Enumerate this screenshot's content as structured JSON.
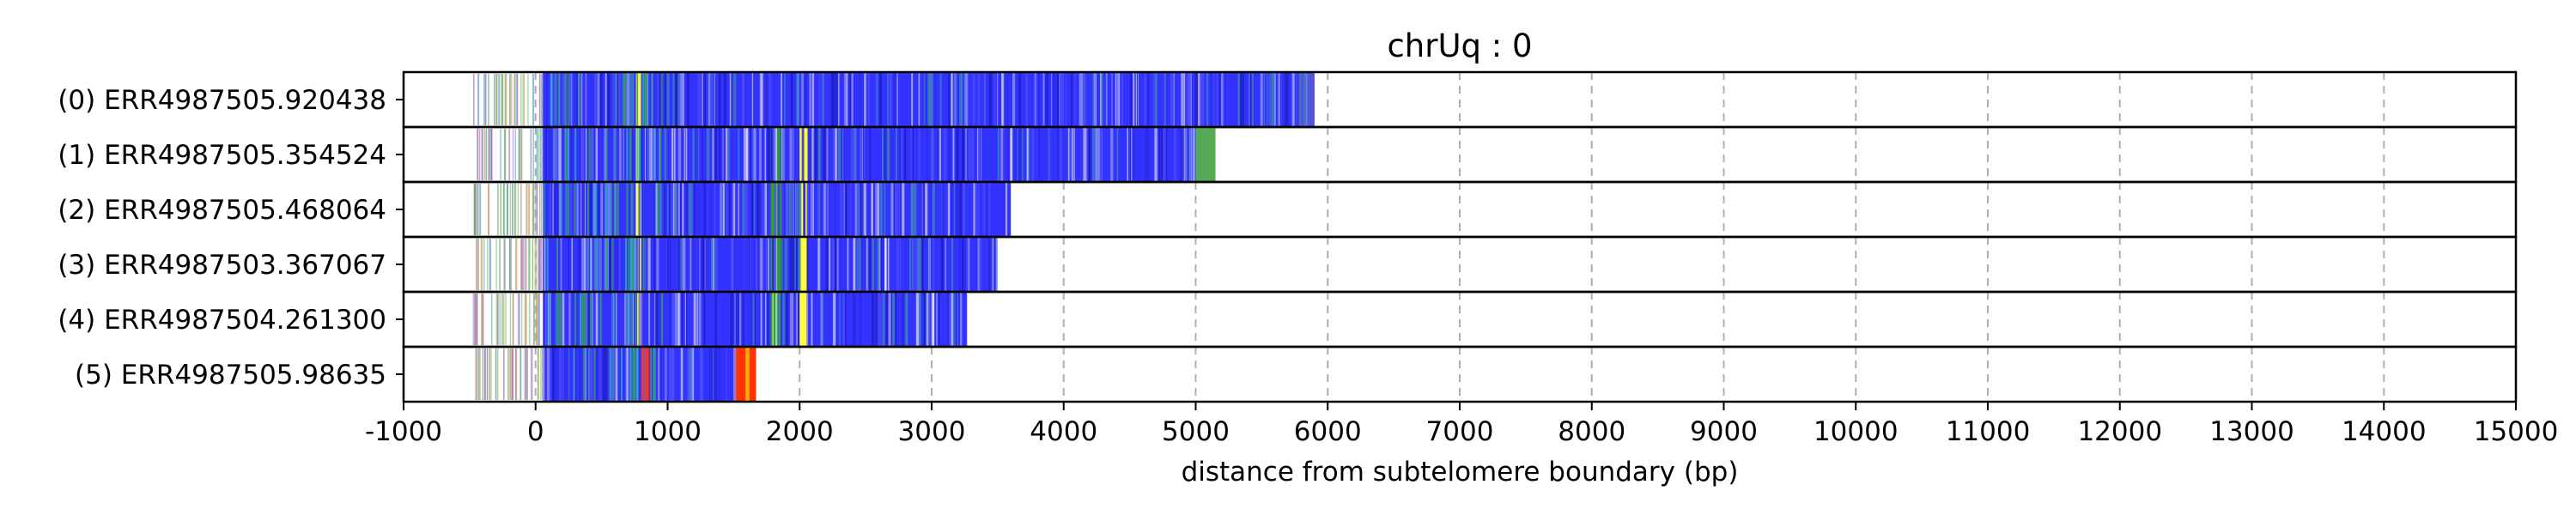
{
  "chart_data": {
    "type": "bar",
    "title": "chrUq : 0",
    "xlabel": "distance from subtelomere boundary (bp)",
    "ylabel": "",
    "xlim": [
      -1000,
      15000
    ],
    "xticks": [
      -1000,
      0,
      1000,
      2000,
      3000,
      4000,
      5000,
      6000,
      7000,
      8000,
      9000,
      10000,
      11000,
      12000,
      13000,
      14000,
      15000
    ],
    "grid": true,
    "series": [
      {
        "name": "(0) ERR4987505.920438",
        "start": -480,
        "end": 5900,
        "segments": [
          {
            "from": 55,
            "to": 5900,
            "color": "#3333ff"
          },
          {
            "from": 760,
            "to": 800,
            "color": "#ffff33"
          },
          {
            "from": 5780,
            "to": 5900,
            "color": "#5555dd"
          }
        ]
      },
      {
        "name": "(1) ERR4987505.354524",
        "start": -480,
        "end": 5150,
        "segments": [
          {
            "from": 55,
            "to": 5000,
            "color": "#3333ff"
          },
          {
            "from": 760,
            "to": 800,
            "color": "#ffff33"
          },
          {
            "from": 1780,
            "to": 1860,
            "color": "#339933"
          },
          {
            "from": 2000,
            "to": 2060,
            "color": "#ffff33"
          },
          {
            "from": 5000,
            "to": 5150,
            "color": "#55aa55"
          }
        ]
      },
      {
        "name": "(2) ERR4987505.468064",
        "start": -480,
        "end": 3600,
        "segments": [
          {
            "from": 55,
            "to": 3600,
            "color": "#3333ff"
          },
          {
            "from": 760,
            "to": 800,
            "color": "#ffff33"
          },
          {
            "from": 1780,
            "to": 1860,
            "color": "#339933"
          },
          {
            "from": 2000,
            "to": 2060,
            "color": "#ffff33"
          }
        ]
      },
      {
        "name": "(3) ERR4987503.367067",
        "start": -480,
        "end": 3500,
        "segments": [
          {
            "from": 55,
            "to": 3500,
            "color": "#3333ff"
          },
          {
            "from": 760,
            "to": 800,
            "color": "#ffff33"
          },
          {
            "from": 1780,
            "to": 1860,
            "color": "#339933"
          },
          {
            "from": 2000,
            "to": 2060,
            "color": "#ffff33"
          }
        ]
      },
      {
        "name": "(4) ERR4987504.261300",
        "start": -480,
        "end": 3270,
        "segments": [
          {
            "from": 55,
            "to": 3270,
            "color": "#3333ff"
          },
          {
            "from": 760,
            "to": 800,
            "color": "#ffff33"
          },
          {
            "from": 1780,
            "to": 1860,
            "color": "#339933"
          },
          {
            "from": 2000,
            "to": 2060,
            "color": "#ffff33"
          }
        ]
      },
      {
        "name": "(5) ERR4987505.98635",
        "start": -480,
        "end": 1670,
        "segments": [
          {
            "from": 55,
            "to": 1500,
            "color": "#3333ff"
          },
          {
            "from": 800,
            "to": 880,
            "color": "#ee3333"
          },
          {
            "from": 1500,
            "to": 1670,
            "color": "#ff3300"
          },
          {
            "from": 1590,
            "to": 1620,
            "color": "#ffaa00"
          }
        ]
      }
    ]
  }
}
